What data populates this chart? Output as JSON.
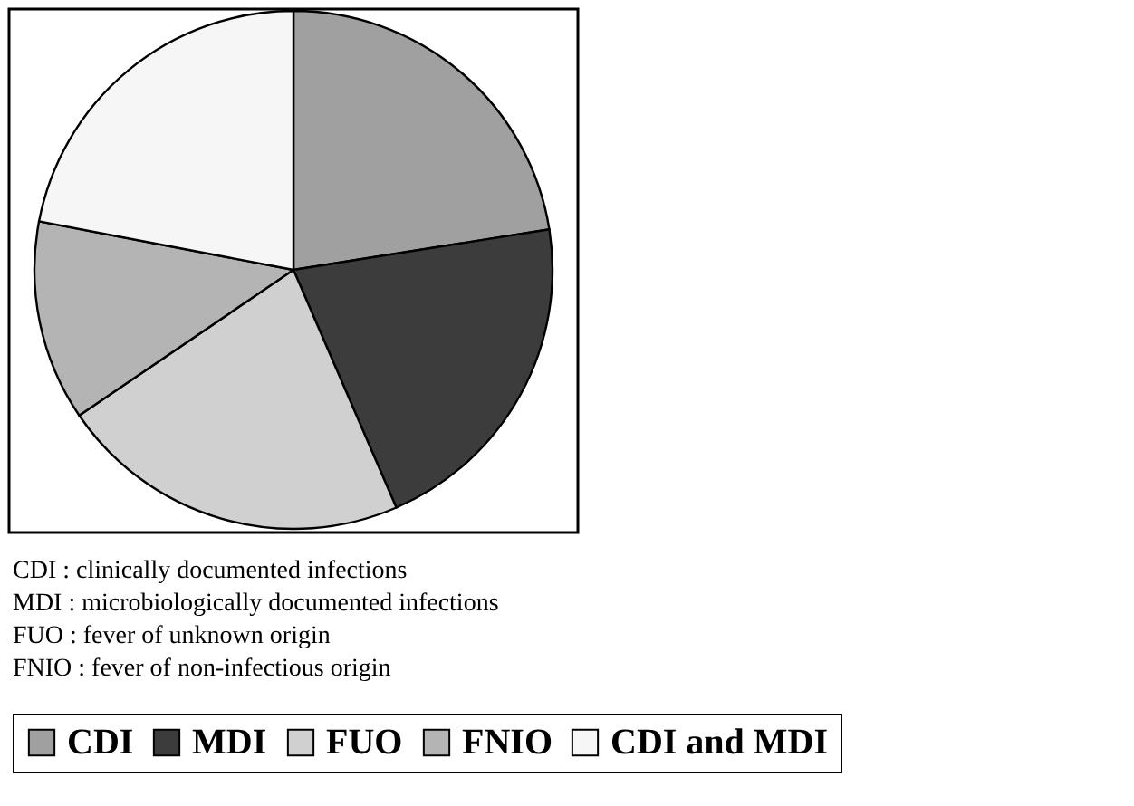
{
  "chart_data": {
    "type": "pie",
    "categories": [
      "CDI",
      "MDI",
      "FUO",
      "FNIO",
      "CDI and MDI"
    ],
    "values": [
      22.5,
      21,
      22,
      12.5,
      22
    ],
    "colors": [
      "#a0a0a0",
      "#3c3c3c",
      "#d0d0d0",
      "#b4b4b4",
      "#f6f6f6"
    ],
    "legend": "bottom",
    "annotations": [
      "CDI : clinically documented infections",
      "MDI : microbiologically documented infections",
      "FUO : fever of unknown origin",
      "FNIO : fever of non-infectious origin"
    ]
  }
}
